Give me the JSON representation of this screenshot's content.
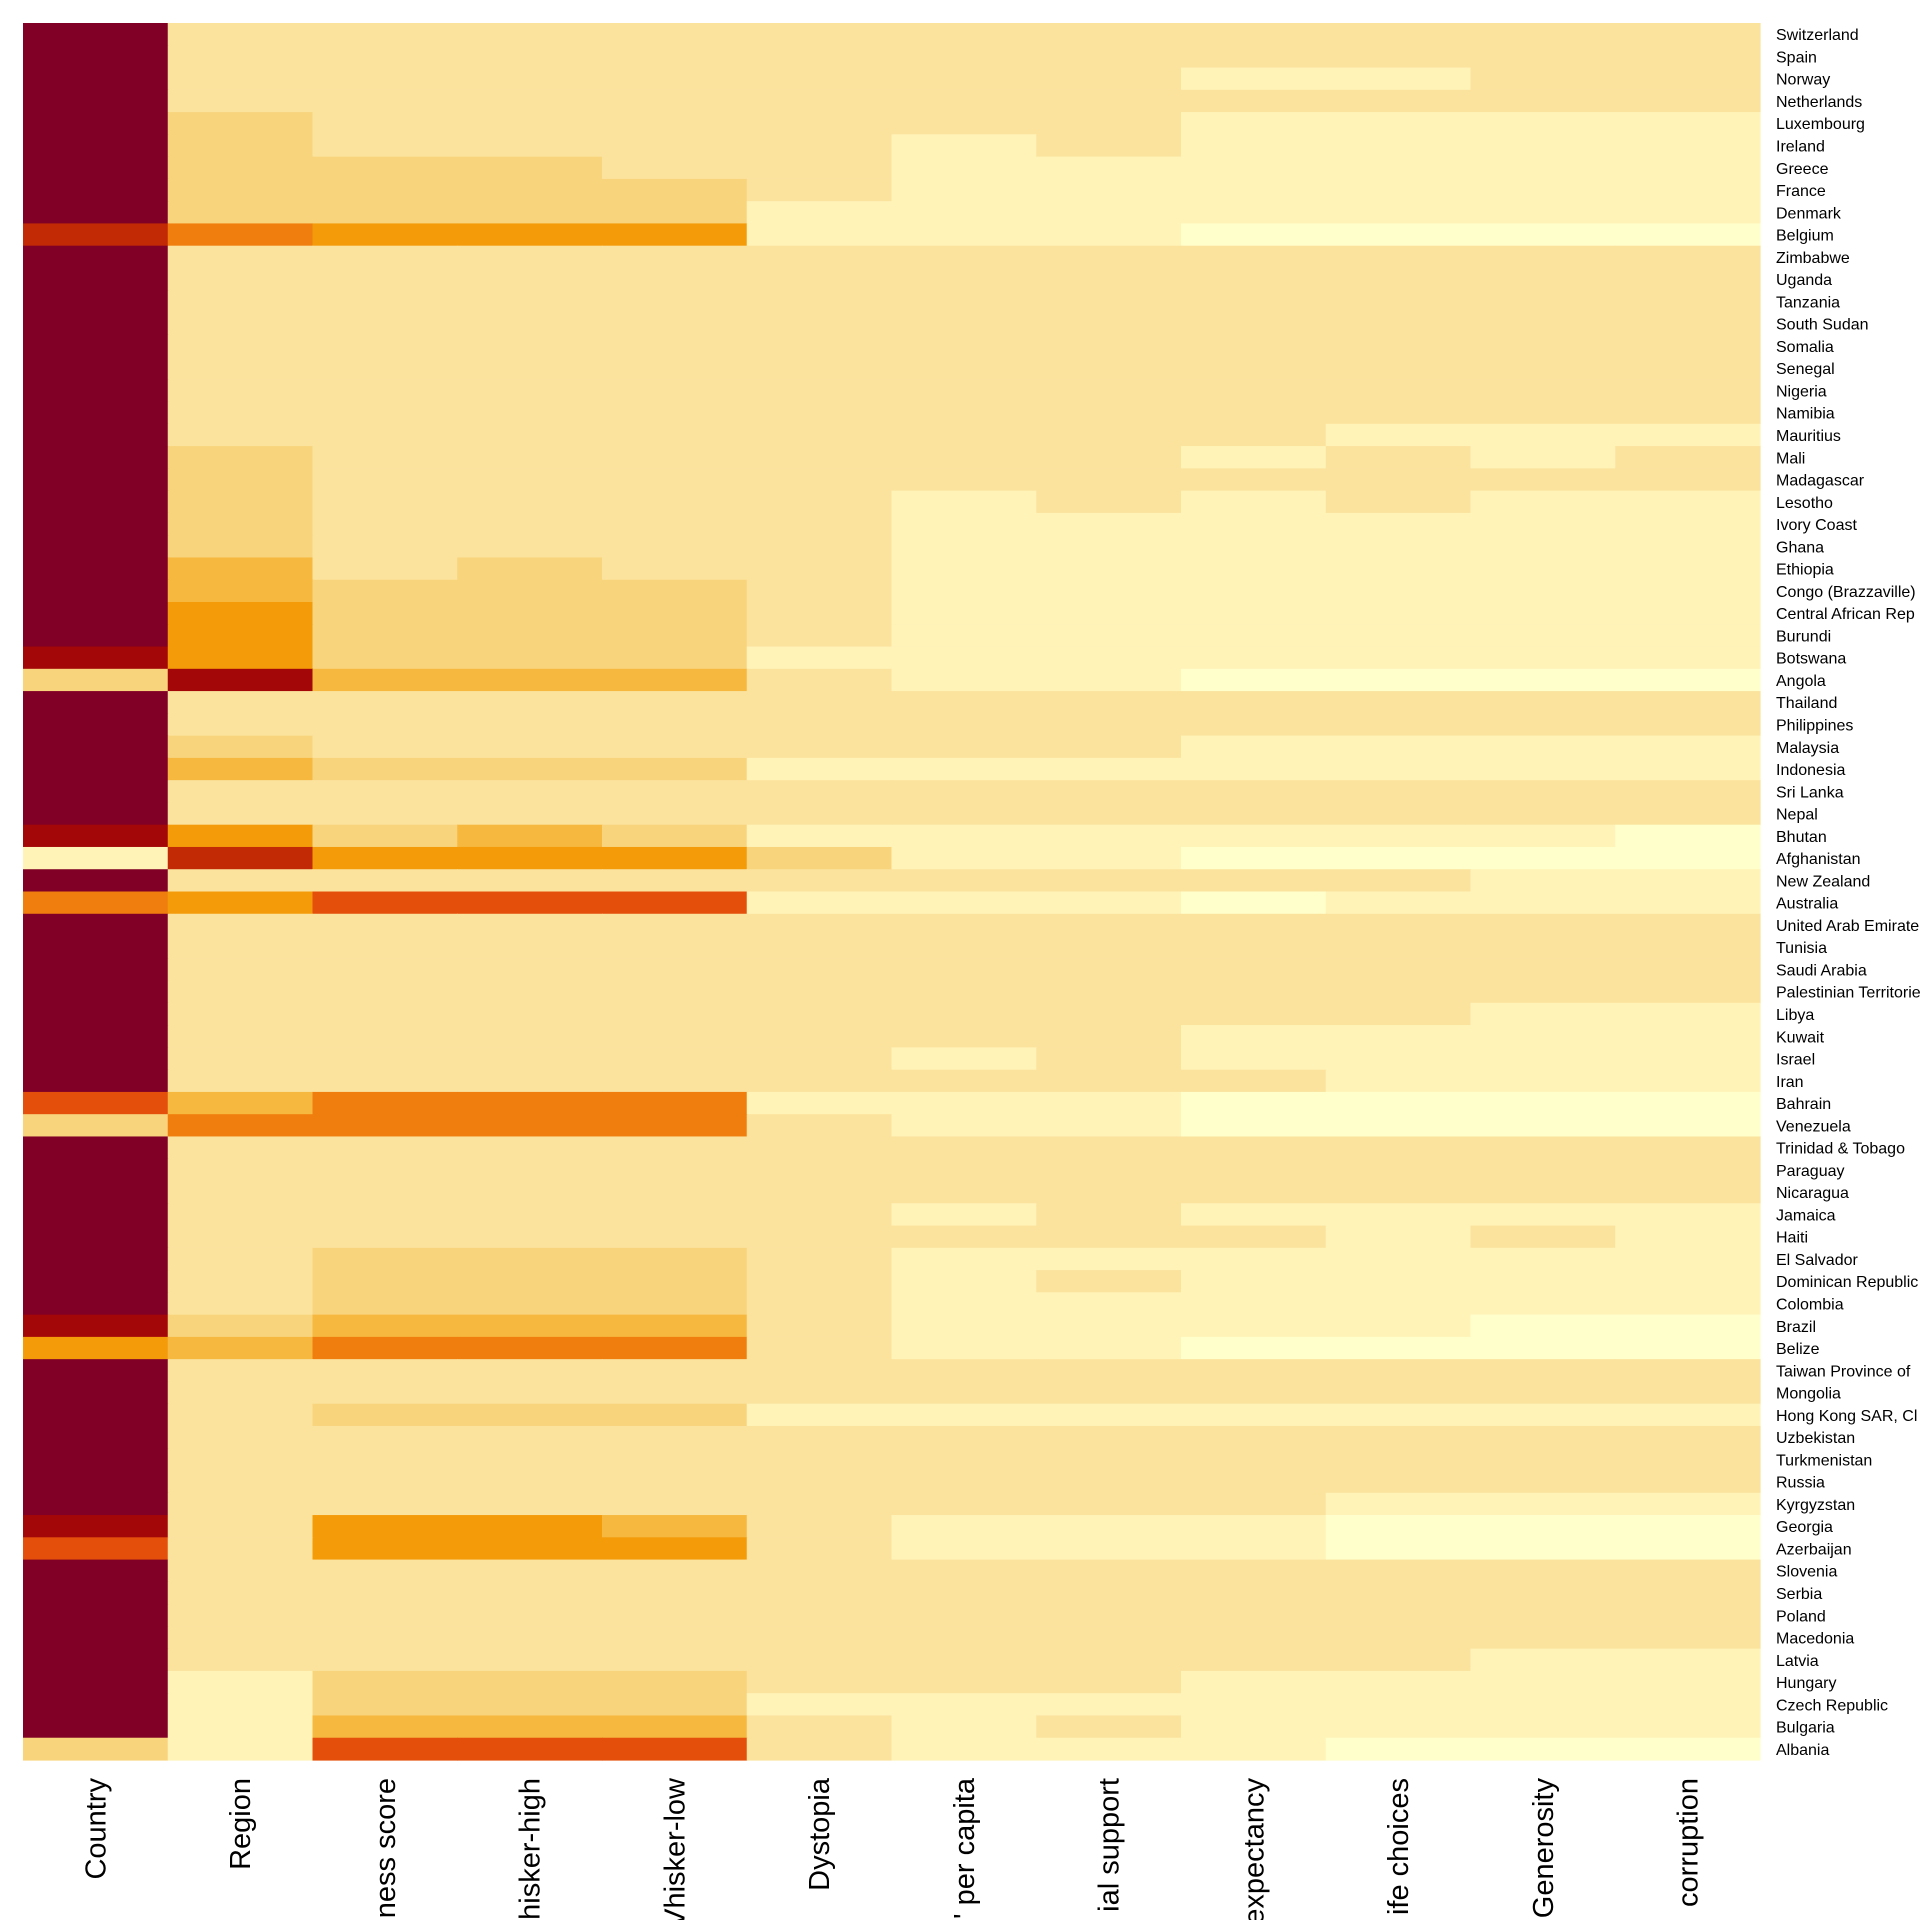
{
  "chart_data": {
    "type": "heatmap",
    "title": "",
    "xlabel": "",
    "ylabel": "",
    "palette": [
      "#ffffcc",
      "#fff3b8",
      "#fbe39e",
      "#f8d47d",
      "#f6b83f",
      "#f49b0a",
      "#f07e0e",
      "#e4500c",
      "#c22a06",
      "#a30707",
      "#800026"
    ],
    "color_scale": "YlOrRd",
    "grid": false,
    "legend": "none",
    "columns": [
      "Country",
      "Region",
      "ness score",
      "hisker-high",
      "Vhisker-low",
      "Dystopia",
      "' per capita",
      "ial support",
      "expectancy",
      "ife choices",
      "Generosity",
      "corruption"
    ],
    "rows": [
      "Switzerland",
      "Spain",
      "Norway",
      "Netherlands",
      "Luxembourg",
      "Ireland",
      "Greece",
      "France",
      "Denmark",
      "Belgium",
      "Zimbabwe",
      "Uganda",
      "Tanzania",
      "South Sudan",
      "Somalia",
      "Senegal",
      "Nigeria",
      "Namibia",
      "Mauritius",
      "Mali",
      "Madagascar",
      "Lesotho",
      "Ivory Coast",
      "Ghana",
      "Ethiopia",
      "Congo (Brazzaville)",
      "Central African Rep",
      "Burundi",
      "Botswana",
      "Angola",
      "Thailand",
      "Philippines",
      "Malaysia",
      "Indonesia",
      "Sri Lanka",
      "Nepal",
      "Bhutan",
      "Afghanistan",
      "New Zealand",
      "Australia",
      "United Arab Emirate",
      "Tunisia",
      "Saudi Arabia",
      "Palestinian Territorie",
      "Libya",
      "Kuwait",
      "Israel",
      "Iran",
      "Bahrain",
      "Venezuela",
      "Trinidad & Tobago",
      "Paraguay",
      "Nicaragua",
      "Jamaica",
      "Haiti",
      "El Salvador",
      "Dominican Republic",
      "Colombia",
      "Brazil",
      "Belize",
      "Taiwan Province of",
      "Mongolia",
      "Hong Kong SAR, Cl",
      "Uzbekistan",
      "Turkmenistan",
      "Russia",
      "Kyrgyzstan",
      "Georgia",
      "Azerbaijan",
      "Slovenia",
      "Serbia",
      "Poland",
      "Macedonia",
      "Latvia",
      "Hungary",
      "Czech Republic",
      "Bulgaria",
      "Albania"
    ],
    "heat_levels": [
      [
        10,
        2,
        2,
        2,
        2,
        2,
        2,
        2,
        2,
        2,
        2,
        2,
        2,
        2,
        2,
        2,
        2,
        2,
        2,
        2,
        2,
        2,
        2,
        2,
        2,
        2,
        2,
        2,
        2,
        2,
        2,
        2,
        2,
        2,
        2,
        2,
        2,
        2,
        2,
        2,
        2,
        2,
        2,
        2,
        2,
        2,
        2,
        2,
        2,
        2,
        2,
        2,
        2,
        2,
        2,
        2,
        2,
        2,
        2,
        2,
        2,
        2,
        2,
        2,
        2,
        2,
        2,
        2,
        2,
        2,
        2,
        2,
        2,
        2,
        2,
        2,
        2,
        2,
        2,
        2,
        2,
        2,
        2,
        2,
        2,
        2,
        2,
        2,
        2,
        2,
        2,
        2,
        2,
        2,
        2,
        2,
        2,
        2,
        2,
        2,
        2,
        2,
        2,
        2,
        2,
        2,
        2,
        2,
        2,
        2,
        2,
        2,
        2,
        2,
        2,
        2,
        2,
        2,
        2,
        2,
        2,
        2,
        2,
        2,
        2,
        2,
        2,
        2,
        2,
        2,
        2,
        2,
        2,
        2,
        2,
        2,
        2,
        2,
        2,
        2,
        2,
        2,
        2,
        2,
        2,
        2,
        2,
        2,
        2,
        2,
        2,
        2,
        2,
        2,
        2,
        2
      ]
    ],
    "cells": [
      [
        10,
        2,
        2,
        2,
        2,
        2,
        2,
        2,
        2,
        2,
        2,
        2
      ],
      [
        10,
        2,
        2,
        2,
        2,
        2,
        2,
        2,
        2,
        2,
        2,
        2
      ],
      [
        10,
        2,
        2,
        2,
        2,
        2,
        2,
        2,
        1,
        1,
        2,
        2
      ],
      [
        10,
        2,
        2,
        2,
        2,
        2,
        2,
        2,
        2,
        2,
        2,
        2
      ],
      [
        10,
        3,
        2,
        2,
        2,
        2,
        2,
        2,
        1,
        1,
        1,
        1
      ],
      [
        10,
        3,
        2,
        2,
        2,
        2,
        1,
        2,
        1,
        1,
        1,
        1
      ],
      [
        10,
        3,
        3,
        3,
        2,
        2,
        1,
        1,
        1,
        1,
        1,
        1
      ],
      [
        10,
        3,
        3,
        3,
        3,
        2,
        1,
        1,
        1,
        1,
        1,
        1
      ],
      [
        10,
        3,
        3,
        3,
        3,
        1,
        1,
        1,
        1,
        1,
        1,
        1
      ],
      [
        8,
        6,
        5,
        5,
        5,
        1,
        1,
        1,
        0,
        0,
        0,
        0
      ],
      [
        10,
        2,
        2,
        2,
        2,
        2,
        2,
        2,
        2,
        2,
        2,
        2
      ],
      [
        10,
        2,
        2,
        2,
        2,
        2,
        2,
        2,
        2,
        2,
        2,
        2
      ],
      [
        10,
        2,
        2,
        2,
        2,
        2,
        2,
        2,
        2,
        2,
        2,
        2
      ],
      [
        10,
        2,
        2,
        2,
        2,
        2,
        2,
        2,
        2,
        2,
        2,
        2
      ],
      [
        10,
        2,
        2,
        2,
        2,
        2,
        2,
        2,
        2,
        2,
        2,
        2
      ],
      [
        10,
        2,
        2,
        2,
        2,
        2,
        2,
        2,
        2,
        2,
        2,
        2
      ],
      [
        10,
        2,
        2,
        2,
        2,
        2,
        2,
        2,
        2,
        2,
        2,
        2
      ],
      [
        10,
        2,
        2,
        2,
        2,
        2,
        2,
        2,
        2,
        2,
        2,
        2
      ],
      [
        10,
        2,
        2,
        2,
        2,
        2,
        2,
        2,
        2,
        1,
        1,
        1
      ],
      [
        10,
        3,
        2,
        2,
        2,
        2,
        2,
        2,
        1,
        2,
        1,
        2
      ],
      [
        10,
        3,
        2,
        2,
        2,
        2,
        2,
        2,
        2,
        2,
        2,
        2
      ],
      [
        10,
        3,
        2,
        2,
        2,
        2,
        1,
        2,
        1,
        2,
        1,
        1
      ],
      [
        10,
        3,
        2,
        2,
        2,
        2,
        1,
        1,
        1,
        1,
        1,
        1
      ],
      [
        10,
        3,
        2,
        2,
        2,
        2,
        1,
        1,
        1,
        1,
        1,
        1
      ],
      [
        10,
        4,
        2,
        3,
        2,
        2,
        1,
        1,
        1,
        1,
        1,
        1
      ],
      [
        10,
        4,
        3,
        3,
        3,
        2,
        1,
        1,
        1,
        1,
        1,
        1
      ],
      [
        10,
        5,
        3,
        3,
        3,
        2,
        1,
        1,
        1,
        1,
        1,
        1
      ],
      [
        10,
        5,
        3,
        3,
        3,
        2,
        1,
        1,
        1,
        1,
        1,
        1
      ],
      [
        9,
        5,
        3,
        3,
        3,
        1,
        1,
        1,
        1,
        1,
        1,
        1
      ],
      [
        3,
        9,
        4,
        4,
        4,
        2,
        1,
        1,
        0,
        0,
        0,
        0
      ],
      [
        10,
        2,
        2,
        2,
        2,
        2,
        2,
        2,
        2,
        2,
        2,
        2
      ],
      [
        10,
        2,
        2,
        2,
        2,
        2,
        2,
        2,
        2,
        2,
        2,
        2
      ],
      [
        10,
        3,
        2,
        2,
        2,
        2,
        2,
        2,
        1,
        1,
        1,
        1
      ],
      [
        10,
        4,
        3,
        3,
        3,
        1,
        1,
        1,
        1,
        1,
        1,
        1
      ],
      [
        10,
        2,
        2,
        2,
        2,
        2,
        2,
        2,
        2,
        2,
        2,
        2
      ],
      [
        10,
        2,
        2,
        2,
        2,
        2,
        2,
        2,
        2,
        2,
        2,
        2
      ],
      [
        9,
        5,
        3,
        4,
        3,
        1,
        1,
        1,
        1,
        1,
        1,
        0
      ],
      [
        1,
        8,
        5,
        5,
        5,
        3,
        1,
        1,
        0,
        0,
        0,
        0
      ],
      [
        10,
        2,
        2,
        2,
        2,
        2,
        2,
        2,
        2,
        2,
        1,
        1
      ],
      [
        6,
        5,
        7,
        7,
        7,
        1,
        1,
        1,
        0,
        1,
        1,
        1
      ],
      [
        10,
        2,
        2,
        2,
        2,
        2,
        2,
        2,
        2,
        2,
        2,
        2
      ],
      [
        10,
        2,
        2,
        2,
        2,
        2,
        2,
        2,
        2,
        2,
        2,
        2
      ],
      [
        10,
        2,
        2,
        2,
        2,
        2,
        2,
        2,
        2,
        2,
        2,
        2
      ],
      [
        10,
        2,
        2,
        2,
        2,
        2,
        2,
        2,
        2,
        2,
        2,
        2
      ],
      [
        10,
        2,
        2,
        2,
        2,
        2,
        2,
        2,
        2,
        2,
        1,
        1
      ],
      [
        10,
        2,
        2,
        2,
        2,
        2,
        2,
        2,
        1,
        1,
        1,
        1
      ],
      [
        10,
        2,
        2,
        2,
        2,
        2,
        1,
        2,
        1,
        1,
        1,
        1
      ],
      [
        10,
        2,
        2,
        2,
        2,
        2,
        2,
        2,
        2,
        1,
        1,
        1
      ],
      [
        7,
        4,
        6,
        6,
        6,
        1,
        1,
        1,
        0,
        0,
        0,
        0
      ],
      [
        3,
        6,
        6,
        6,
        6,
        2,
        1,
        1,
        0,
        0,
        0,
        0
      ],
      [
        10,
        2,
        2,
        2,
        2,
        2,
        2,
        2,
        2,
        2,
        2,
        2
      ],
      [
        10,
        2,
        2,
        2,
        2,
        2,
        2,
        2,
        2,
        2,
        2,
        2
      ],
      [
        10,
        2,
        2,
        2,
        2,
        2,
        2,
        2,
        2,
        2,
        2,
        2
      ],
      [
        10,
        2,
        2,
        2,
        2,
        2,
        1,
        2,
        1,
        1,
        1,
        1
      ],
      [
        10,
        2,
        2,
        2,
        2,
        2,
        2,
        2,
        2,
        1,
        2,
        1
      ],
      [
        10,
        2,
        3,
        3,
        3,
        2,
        1,
        1,
        1,
        1,
        1,
        1
      ],
      [
        10,
        2,
        3,
        3,
        3,
        2,
        1,
        2,
        1,
        1,
        1,
        1
      ],
      [
        10,
        2,
        3,
        3,
        3,
        2,
        1,
        1,
        1,
        1,
        1,
        1
      ],
      [
        9,
        3,
        4,
        4,
        4,
        2,
        1,
        1,
        1,
        1,
        0,
        0
      ],
      [
        5,
        4,
        6,
        6,
        6,
        2,
        1,
        1,
        0,
        0,
        0,
        0
      ],
      [
        10,
        2,
        2,
        2,
        2,
        2,
        2,
        2,
        2,
        2,
        2,
        2
      ],
      [
        10,
        2,
        2,
        2,
        2,
        2,
        2,
        2,
        2,
        2,
        2,
        2
      ],
      [
        10,
        2,
        3,
        3,
        3,
        1,
        1,
        1,
        1,
        1,
        1,
        1
      ],
      [
        10,
        2,
        2,
        2,
        2,
        2,
        2,
        2,
        2,
        2,
        2,
        2
      ],
      [
        10,
        2,
        2,
        2,
        2,
        2,
        2,
        2,
        2,
        2,
        2,
        2
      ],
      [
        10,
        2,
        2,
        2,
        2,
        2,
        2,
        2,
        2,
        2,
        2,
        2
      ],
      [
        10,
        2,
        2,
        2,
        2,
        2,
        2,
        2,
        2,
        1,
        1,
        1
      ],
      [
        9,
        2,
        5,
        5,
        4,
        2,
        1,
        1,
        1,
        0,
        0,
        0
      ],
      [
        7,
        2,
        5,
        5,
        5,
        2,
        1,
        1,
        1,
        0,
        0,
        0
      ],
      [
        10,
        2,
        2,
        2,
        2,
        2,
        2,
        2,
        2,
        2,
        2,
        2
      ],
      [
        10,
        2,
        2,
        2,
        2,
        2,
        2,
        2,
        2,
        2,
        2,
        2
      ],
      [
        10,
        2,
        2,
        2,
        2,
        2,
        2,
        2,
        2,
        2,
        2,
        2
      ],
      [
        10,
        2,
        2,
        2,
        2,
        2,
        2,
        2,
        2,
        2,
        2,
        2
      ],
      [
        10,
        2,
        2,
        2,
        2,
        2,
        2,
        2,
        2,
        2,
        1,
        1
      ],
      [
        10,
        1,
        3,
        3,
        3,
        2,
        2,
        2,
        1,
        1,
        1,
        1
      ],
      [
        10,
        1,
        3,
        3,
        3,
        1,
        1,
        1,
        1,
        1,
        1,
        1
      ],
      [
        10,
        1,
        4,
        4,
        4,
        2,
        1,
        2,
        1,
        1,
        1,
        1
      ],
      [
        3,
        1,
        7,
        7,
        7,
        2,
        1,
        1,
        1,
        0,
        0,
        0
      ]
    ]
  }
}
